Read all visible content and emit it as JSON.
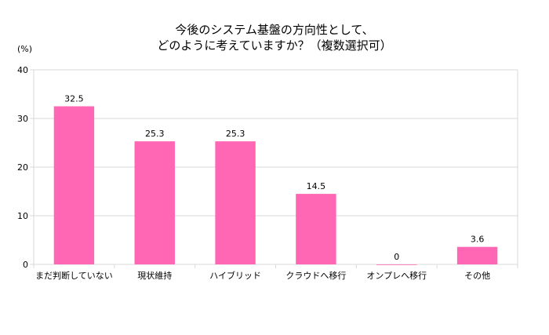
{
  "chart_data": {
    "type": "bar",
    "title": [
      "今後のシステム基盤の方向性として、",
      "どのように考えていますか？（複数選択可）"
    ],
    "ylabel": "(%)",
    "xlabel": "",
    "categories": [
      "まだ判断していない",
      "現状維持",
      "ハイブリッド",
      "クラウドへ移行",
      "オンプレへ移行",
      "その他"
    ],
    "values": [
      32.5,
      25.3,
      25.3,
      14.5,
      0,
      3.6
    ],
    "value_labels": [
      "32.5",
      "25.3",
      "25.3",
      "14.5",
      "0",
      "3.6"
    ],
    "ylim": [
      0,
      40
    ],
    "yticks": [
      "0",
      "10",
      "20",
      "30",
      "40"
    ],
    "grid": true,
    "legend": "none",
    "colors": {
      "bar": "#ff66b3",
      "grid": "#d9d9d9"
    }
  }
}
